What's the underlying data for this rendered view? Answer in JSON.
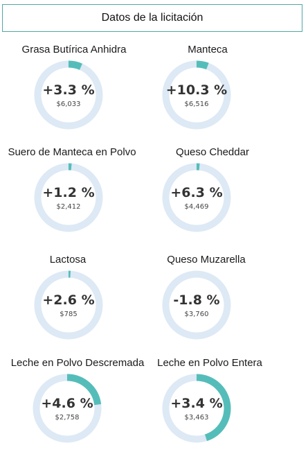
{
  "header": {
    "title": "Datos de la licitación"
  },
  "colors": {
    "track": "#dde9f5",
    "fill": "#55bdb9",
    "border": "#4fa9a4"
  },
  "products": [
    {
      "name": "Grasa Butírica Anhidra",
      "change": "+3.3 %",
      "price": "$6,033",
      "fill_fraction": 0.066
    },
    {
      "name": "Manteca",
      "change": "+10.3 %",
      "price": "$6,516",
      "fill_fraction": 0.058
    },
    {
      "name": "Suero de Manteca en Polvo",
      "change": "+1.2 %",
      "price": "$2,412",
      "fill_fraction": 0.015
    },
    {
      "name": "Queso Cheddar",
      "change": "+6.3 %",
      "price": "$4,469",
      "fill_fraction": 0.015
    },
    {
      "name": "Lactosa",
      "change": "+2.6 %",
      "price": "$785",
      "fill_fraction": 0.01
    },
    {
      "name": "Queso Muzarella",
      "change": "-1.8 %",
      "price": "$3,760",
      "fill_fraction": 0
    },
    {
      "name": "Leche en Polvo Descremada",
      "change": "+4.6 %",
      "price": "$2,758",
      "fill_fraction": 0.23
    },
    {
      "name": "Leche en Polvo Entera",
      "change": "+3.4 %",
      "price": "$3,463",
      "fill_fraction": 0.45
    }
  ]
}
